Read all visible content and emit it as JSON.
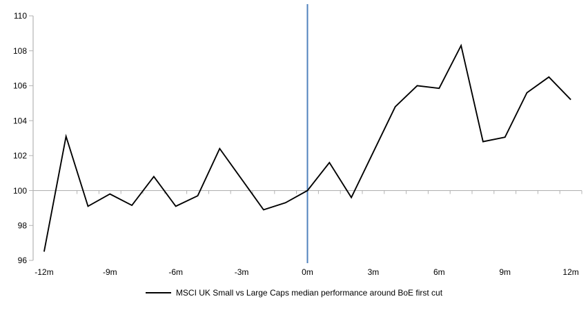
{
  "chart_data": {
    "type": "line",
    "title": "",
    "xlabel": "",
    "ylabel": "",
    "x": [
      -12,
      -11,
      -10,
      -9,
      -8,
      -7,
      -6,
      -5,
      -4,
      -3,
      -2,
      -1,
      0,
      1,
      2,
      3,
      4,
      5,
      6,
      7,
      8,
      9,
      10,
      11,
      12
    ],
    "series": [
      {
        "name": "MSCI UK Small vs Large Caps median performance around BoE first cut",
        "color": "#000000",
        "values": [
          96.5,
          103.1,
          99.1,
          99.8,
          99.15,
          100.8,
          99.1,
          99.7,
          102.4,
          100.65,
          98.9,
          99.3,
          100.0,
          101.6,
          99.6,
          102.2,
          104.8,
          106.0,
          105.85,
          108.3,
          102.8,
          103.05,
          105.6,
          106.5,
          105.2
        ]
      }
    ],
    "xlim": [
      -12.5,
      12.5
    ],
    "ylim": [
      96,
      110
    ],
    "x_axis_tick_values": [
      -12,
      -9,
      -6,
      -3,
      0,
      3,
      6,
      9,
      12
    ],
    "x_axis_tick_labels": [
      "-12m",
      "-9m",
      "-6m",
      "-3m",
      "0m",
      "3m",
      "6m",
      "9m",
      "12m"
    ],
    "y_axis_tick_values": [
      96,
      98,
      100,
      102,
      104,
      106,
      108,
      110
    ],
    "y_axis_tick_labels": [
      "96",
      "98",
      "100",
      "102",
      "104",
      "106",
      "108",
      "110"
    ],
    "baseline_value": 100,
    "event_line": {
      "x": 0,
      "color": "#4F81BD"
    },
    "colors": {
      "axis": "#B3B3B3",
      "series": "#000000",
      "background": "#FFFFFF"
    },
    "grid": "single horizontal axis line at 100, no other gridlines",
    "legend_position": "bottom-center"
  }
}
